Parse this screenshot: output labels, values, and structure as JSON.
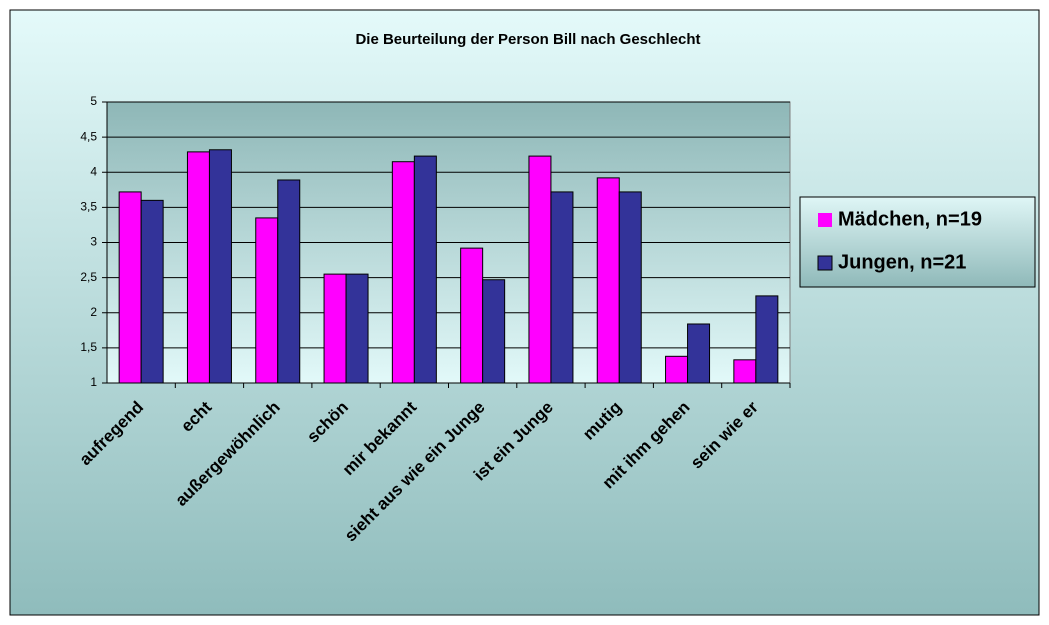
{
  "chart_data": {
    "type": "bar",
    "title": "Die Beurteilung der Person Bill nach Geschlecht",
    "categories": [
      "aufregend",
      "echt",
      "außergewöhnlich",
      "schön",
      "mir bekannt",
      "sieht aus wie ein Junge",
      "ist ein Junge",
      "mutig",
      "mit ihm gehen",
      "sein wie er"
    ],
    "series": [
      {
        "name": "Mädchen, n=19",
        "color": "#ff00ff",
        "values": [
          3.72,
          4.29,
          3.35,
          2.55,
          4.15,
          2.92,
          4.23,
          3.92,
          1.38,
          1.33
        ]
      },
      {
        "name": "Jungen, n=21",
        "color": "#333399",
        "values": [
          3.6,
          4.32,
          3.89,
          2.55,
          4.23,
          2.47,
          3.72,
          3.72,
          1.84,
          2.24
        ]
      }
    ],
    "ylim": [
      1,
      5
    ],
    "yticks": [
      1,
      {
        "value": 1.5,
        "label": "1,5"
      },
      2,
      {
        "value": 2.5,
        "label": "2,5"
      },
      3,
      {
        "value": 3.5,
        "label": "3,5"
      },
      4,
      {
        "value": 4.5,
        "label": "4,5"
      },
      5
    ],
    "grid": true,
    "legend": "right"
  }
}
